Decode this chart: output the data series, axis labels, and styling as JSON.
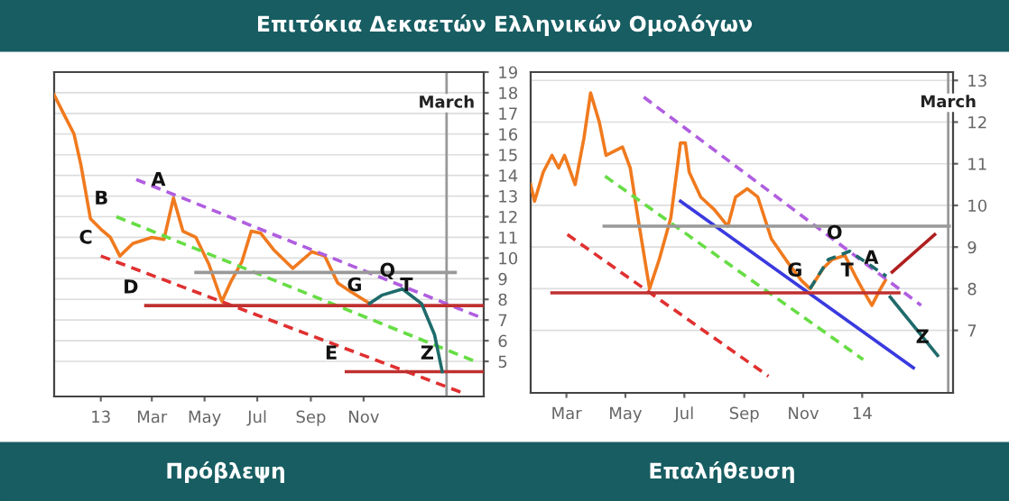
{
  "chart_data": [
    {
      "type": "line",
      "title": "Επιτόκια Δεκαετών Ελληνικών Ομολόγων",
      "xlabel": "Πρόβλεψη",
      "xlim": [
        "2012-11-08",
        "2014-03-20"
      ],
      "ylim": [
        3.3,
        19
      ],
      "xticks": [
        {
          "value": "2013-01-01",
          "label": "13"
        },
        {
          "value": "2013-03-01",
          "label": "Mar"
        },
        {
          "value": "2013-05-01",
          "label": "May"
        },
        {
          "value": "2013-07-01",
          "label": "Jul"
        },
        {
          "value": "2013-09-01",
          "label": "Sep"
        },
        {
          "value": "2013-11-01",
          "label": "Nov"
        }
      ],
      "yticks": [
        5,
        6,
        7,
        8,
        9,
        10,
        11,
        12,
        13,
        14,
        15,
        16,
        17,
        18,
        19
      ],
      "grid": "y",
      "series": [
        {
          "color": "#f07a1e",
          "x": [
            "2012-11-08",
            "2012-11-20",
            "2012-12-01",
            "2012-12-09",
            "2012-12-20",
            "2013-01-01",
            "2013-01-12",
            "2013-01-23",
            "2013-02-07",
            "2013-03-01",
            "2013-03-15",
            "2013-03-26",
            "2013-04-06",
            "2013-04-21",
            "2013-05-06",
            "2013-05-21",
            "2013-06-01",
            "2013-06-13",
            "2013-06-24",
            "2013-07-05",
            "2013-07-20",
            "2013-08-11",
            "2013-09-02",
            "2013-09-17",
            "2013-10-02",
            "2013-10-16",
            "2013-11-08"
          ],
          "values": [
            17.9,
            16.9,
            16.0,
            14.5,
            11.9,
            11.4,
            11.0,
            10.1,
            10.7,
            11.0,
            10.9,
            12.9,
            11.3,
            11.0,
            9.7,
            7.9,
            8.9,
            9.8,
            11.3,
            11.2,
            10.4,
            9.5,
            10.3,
            10.1,
            8.8,
            8.4,
            7.8
          ]
        },
        {
          "color": "#b05ee0",
          "line_style": "dashed",
          "x": [
            "2013-02-11",
            "2014-03-18"
          ],
          "values": [
            13.8,
            7.1
          ]
        },
        {
          "color": "#66dd44",
          "line_style": "dashed",
          "x": [
            "2013-01-19",
            "2014-03-10"
          ],
          "values": [
            12.0,
            5.0
          ]
        },
        {
          "color": "#e03030",
          "line_style": "dashed",
          "x": [
            "2013-01-01",
            "2014-02-22"
          ],
          "values": [
            10.1,
            3.5
          ]
        },
        {
          "color": "#c03030",
          "x": [
            "2013-02-22",
            "2014-03-18"
          ],
          "values": [
            7.7,
            7.7
          ]
        },
        {
          "color": "#999999",
          "x": [
            "2013-04-21",
            "2014-02-15"
          ],
          "values": [
            9.3,
            9.3
          ]
        },
        {
          "color": "#c03030",
          "x": [
            "2013-10-12",
            "2014-03-18"
          ],
          "values": [
            4.5,
            4.5
          ]
        },
        {
          "color": "#1f6b6b",
          "x": [
            "2013-11-08",
            "2013-11-22",
            "2013-12-16",
            "2014-01-07",
            "2014-01-22",
            "2014-01-31"
          ],
          "values": [
            7.8,
            8.2,
            8.5,
            7.8,
            6.3,
            4.5
          ]
        }
      ],
      "ref_lines": [
        {
          "axis": "x",
          "value": "2014-02-05",
          "label": "March",
          "color": "#999999"
        }
      ],
      "annotations": [
        {
          "text": "A",
          "x": "2013-03-26",
          "y": 12.9
        },
        {
          "text": "B",
          "x": "2013-01-19",
          "y": 12.0
        },
        {
          "text": "C",
          "x": "2013-01-01",
          "y": 10.1
        },
        {
          "text": "D",
          "x": "2013-02-22",
          "y": 7.7
        },
        {
          "text": "Q",
          "x": "2013-12-16",
          "y": 8.5
        },
        {
          "text": "T",
          "x": "2014-01-07",
          "y": 7.8
        },
        {
          "text": "G",
          "x": "2013-11-08",
          "y": 7.8
        },
        {
          "text": "E",
          "x": "2013-10-12",
          "y": 4.5
        },
        {
          "text": "Z",
          "x": "2014-01-31",
          "y": 4.5
        }
      ]
    },
    {
      "type": "line",
      "xlabel": "Επαλήθευση",
      "xlim": [
        "2013-01-23",
        "2014-04-05"
      ],
      "ylim": [
        5.5,
        13.2
      ],
      "xticks": [
        {
          "value": "2013-03-01",
          "label": "Mar"
        },
        {
          "value": "2013-05-01",
          "label": "May"
        },
        {
          "value": "2013-07-01",
          "label": "Jul"
        },
        {
          "value": "2013-09-01",
          "label": "Sep"
        },
        {
          "value": "2013-11-01",
          "label": "Nov"
        },
        {
          "value": "2014-01-01",
          "label": "14"
        }
      ],
      "yticks": [
        7,
        8,
        9,
        10,
        11,
        12,
        13
      ],
      "grid": "y",
      "series": [
        {
          "color": "#f07a1e",
          "x": [
            "2013-01-23",
            "2013-01-27",
            "2013-02-05",
            "2013-02-14",
            "2013-02-21",
            "2013-02-27",
            "2013-03-10",
            "2013-03-19",
            "2013-03-26",
            "2013-04-04",
            "2013-04-11",
            "2013-04-28",
            "2013-05-06",
            "2013-05-14",
            "2013-05-26",
            "2013-06-05",
            "2013-06-17",
            "2013-06-27",
            "2013-07-02",
            "2013-07-06",
            "2013-07-18",
            "2013-08-01",
            "2013-08-15",
            "2013-08-23",
            "2013-09-04",
            "2013-09-15",
            "2013-09-29",
            "2013-10-17",
            "2013-10-30",
            "2013-11-08",
            "2013-11-22",
            "2013-12-01",
            "2013-12-14",
            "2013-12-25",
            "2014-01-01",
            "2014-01-11",
            "2014-01-20",
            "2014-01-25"
          ],
          "values": [
            10.5,
            10.1,
            10.8,
            11.2,
            10.9,
            11.2,
            10.5,
            11.6,
            12.7,
            12.0,
            11.2,
            11.4,
            10.9,
            9.7,
            8.0,
            8.7,
            9.7,
            11.5,
            11.5,
            10.8,
            10.2,
            9.9,
            9.5,
            10.2,
            10.4,
            10.2,
            9.2,
            8.6,
            8.2,
            8.0,
            8.5,
            8.7,
            8.8,
            8.3,
            8.0,
            7.6,
            8.0,
            8.2
          ]
        },
        {
          "color": "#b05ee0",
          "line_style": "dashed",
          "x": [
            "2013-05-20",
            "2014-03-03"
          ],
          "values": [
            12.6,
            7.6
          ]
        },
        {
          "color": "#3a3adf",
          "x": [
            "2013-06-27",
            "2014-02-23"
          ],
          "values": [
            10.1,
            6.1
          ]
        },
        {
          "color": "#66dd44",
          "line_style": "dashed",
          "x": [
            "2013-04-10",
            "2014-01-02"
          ],
          "values": [
            10.7,
            6.3
          ]
        },
        {
          "color": "#e03030",
          "line_style": "dashed",
          "x": [
            "2013-03-02",
            "2013-09-26"
          ],
          "values": [
            9.3,
            5.9
          ]
        },
        {
          "color": "#c03030",
          "x": [
            "2013-02-14",
            "2014-02-08"
          ],
          "values": [
            7.9,
            7.9
          ]
        },
        {
          "color": "#999999",
          "x": [
            "2013-04-09",
            "2014-04-01"
          ],
          "values": [
            9.5,
            9.5
          ]
        },
        {
          "color": "#1f6b6b",
          "line_style": "dashed",
          "x": [
            "2013-11-08",
            "2013-11-27",
            "2013-12-19",
            "2014-01-26"
          ],
          "values": [
            8.0,
            8.7,
            8.9,
            8.3
          ]
        },
        {
          "color": "#b02020",
          "x": [
            "2014-02-01",
            "2014-03-17"
          ],
          "values": [
            8.4,
            9.3
          ]
        },
        {
          "color": "#1f6b6b",
          "x": [
            "2014-01-30",
            "2014-03-20"
          ],
          "values": [
            7.8,
            6.4
          ]
        }
      ],
      "ref_lines": [
        {
          "axis": "x",
          "value": "2014-03-31",
          "label": "March",
          "color": "#999999"
        }
      ],
      "annotations": [
        {
          "text": "O",
          "x": "2013-12-19",
          "y": 8.9
        },
        {
          "text": "A",
          "x": "2014-01-26",
          "y": 8.3
        },
        {
          "text": "G",
          "x": "2013-11-08",
          "y": 8.0
        },
        {
          "text": "T",
          "x": "2014-01-01",
          "y": 8.0
        },
        {
          "text": "Z",
          "x": "2014-03-20",
          "y": 6.4
        }
      ]
    }
  ]
}
